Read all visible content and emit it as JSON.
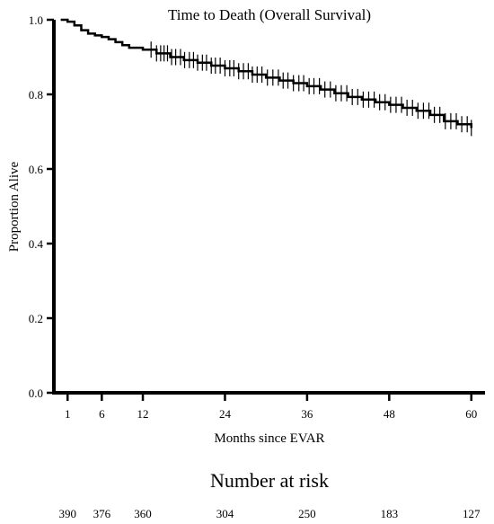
{
  "chart_data": {
    "type": "line",
    "title": "Time to Death (Overall Survival)",
    "xlabel": "Months since EVAR",
    "ylabel": "Proportion Alive",
    "xlim": [
      -1,
      62
    ],
    "ylim": [
      0,
      1.0
    ],
    "x_ticks": [
      1,
      6,
      12,
      24,
      36,
      48,
      60
    ],
    "y_ticks": [
      "0.0",
      "0.2",
      "0.4",
      "0.6",
      "0.8",
      "1.0"
    ],
    "grid": false,
    "series": [
      {
        "x": [
          0,
          1,
          2,
          3,
          4,
          5,
          6,
          7,
          8,
          9,
          10,
          12,
          14,
          16,
          18,
          20,
          22,
          24,
          26,
          28,
          30,
          32,
          34,
          36,
          38,
          40,
          42,
          44,
          46,
          48,
          50,
          52,
          54,
          56,
          58,
          60
        ],
        "y": [
          1.0,
          0.995,
          0.985,
          0.972,
          0.963,
          0.958,
          0.954,
          0.948,
          0.94,
          0.932,
          0.925,
          0.92,
          0.91,
          0.9,
          0.892,
          0.885,
          0.877,
          0.87,
          0.862,
          0.853,
          0.845,
          0.837,
          0.83,
          0.822,
          0.813,
          0.803,
          0.793,
          0.786,
          0.779,
          0.772,
          0.764,
          0.756,
          0.745,
          0.728,
          0.72,
          0.71
        ]
      }
    ],
    "censor_marks": {
      "x": [
        13.2,
        14.0,
        14.6,
        15.1,
        15.6,
        16.2,
        16.8,
        17.5,
        18.1,
        18.8,
        19.4,
        20.0,
        20.7,
        21.3,
        22.0,
        22.6,
        23.3,
        24.0,
        24.7,
        25.3,
        26.0,
        26.7,
        27.4,
        28.0,
        28.7,
        29.4,
        30.2,
        31.0,
        31.8,
        32.5,
        33.2,
        34.0,
        34.8,
        35.5,
        36.3,
        37.0,
        37.8,
        38.6,
        39.4,
        40.2,
        41.0,
        41.8,
        42.6,
        43.4,
        44.2,
        45.0,
        45.8,
        46.6,
        47.4,
        48.2,
        49.0,
        49.8,
        50.6,
        51.4,
        52.2,
        53.0,
        53.8,
        54.6,
        55.4,
        56.2,
        57.0,
        57.8,
        58.6,
        59.4,
        60.0
      ]
    },
    "risk_table": {
      "title": "Number at risk",
      "x": [
        1,
        6,
        12,
        24,
        36,
        48,
        60
      ],
      "values": [
        "390",
        "376",
        "360",
        "304",
        "250",
        "183",
        "127"
      ]
    }
  }
}
